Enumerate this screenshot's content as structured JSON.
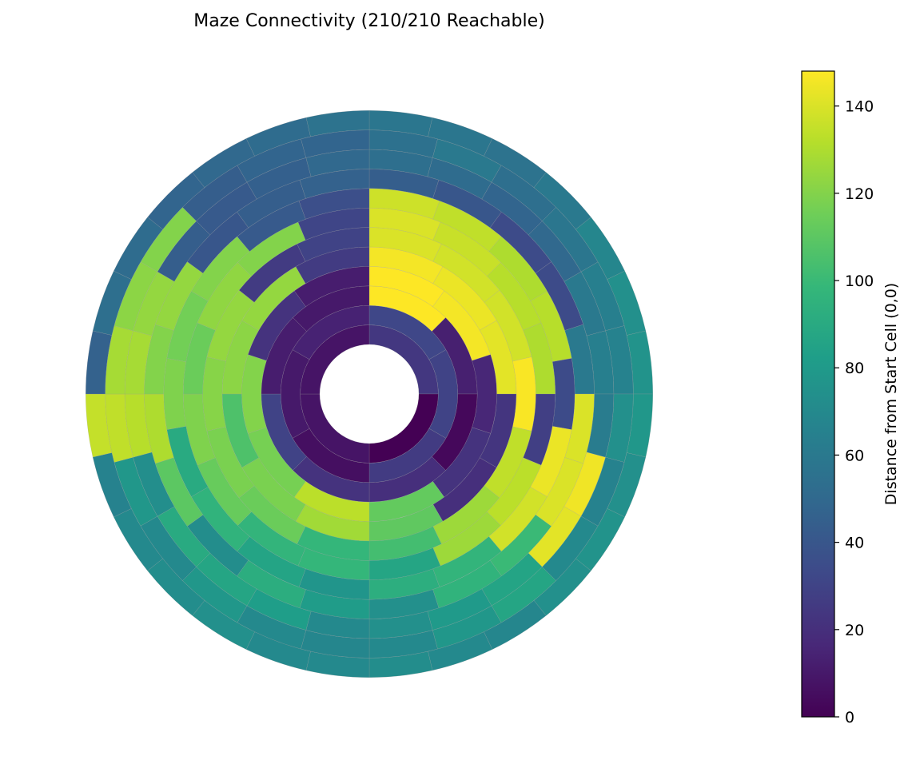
{
  "chart_data": {
    "type": "heatmap",
    "subtype": "polar-maze-distance",
    "title": "Maze Connectivity (210/210 Reachable)",
    "colorbar": {
      "label": "Distance from Start Cell (0,0)",
      "range": [
        0,
        148
      ],
      "ticks": [
        0,
        20,
        40,
        60,
        80,
        100,
        120,
        140
      ],
      "colormap": "viridis",
      "stops": [
        "#440154",
        "#482878",
        "#3e4989",
        "#31688e",
        "#26828e",
        "#1f9e89",
        "#35b779",
        "#6ece58",
        "#b5de2b",
        "#fde725"
      ]
    },
    "grid": {
      "rings": 12,
      "sectors_per_ring": [
        4,
        6,
        8,
        10,
        12,
        14,
        16,
        18,
        20,
        24,
        24,
        28
      ],
      "start_angle_deg": 90,
      "direction": "clockwise"
    },
    "cells": [
      [
        24,
        0,
        8,
        8
      ],
      [
        32,
        30,
        26,
        6,
        10,
        14
      ],
      [
        148,
        13,
        3,
        20,
        22,
        30,
        12,
        10
      ],
      [
        148,
        146,
        16,
        22,
        112,
        133,
        117,
        120,
        22,
        12
      ],
      [
        146,
        144,
        142,
        23,
        20,
        111,
        127,
        118,
        106,
        122,
        124,
        26
      ],
      [
        140,
        138,
        138,
        147,
        134,
        126,
        103,
        98,
        114,
        118,
        121,
        124,
        26,
        30
      ],
      [
        140,
        136,
        132,
        130,
        28,
        133,
        126,
        87,
        98,
        97,
        113,
        119,
        114,
        123,
        120,
        31
      ],
      [
        137,
        134,
        130,
        132,
        34,
        144,
        138,
        97,
        93,
        77,
        86,
        96,
        90,
        119,
        116,
        120,
        42,
        36
      ],
      [
        44,
        40,
        34,
        34,
        60,
        140,
        140,
        100,
        96,
        74,
        81,
        92,
        72,
        110,
        130,
        120,
        124,
        40,
        44,
        46
      ],
      [
        54,
        52,
        48,
        50,
        60,
        64,
        62,
        145,
        142,
        86,
        80,
        74,
        70,
        82,
        87,
        90,
        73,
        132,
        128,
        124,
        44,
        42,
        45,
        50
      ],
      [
        55,
        60,
        54,
        58,
        64,
        66,
        74,
        66,
        70,
        87,
        78,
        70,
        68,
        70,
        78,
        70,
        78,
        134,
        128,
        122,
        120,
        44,
        48,
        48
      ],
      [
        58,
        58,
        56,
        60,
        68,
        74,
        76,
        78,
        74,
        76,
        74,
        68,
        70,
        72,
        70,
        70,
        74,
        72,
        70,
        66,
        135,
        46,
        54,
        52,
        48,
        50,
        52,
        56
      ]
    ]
  }
}
